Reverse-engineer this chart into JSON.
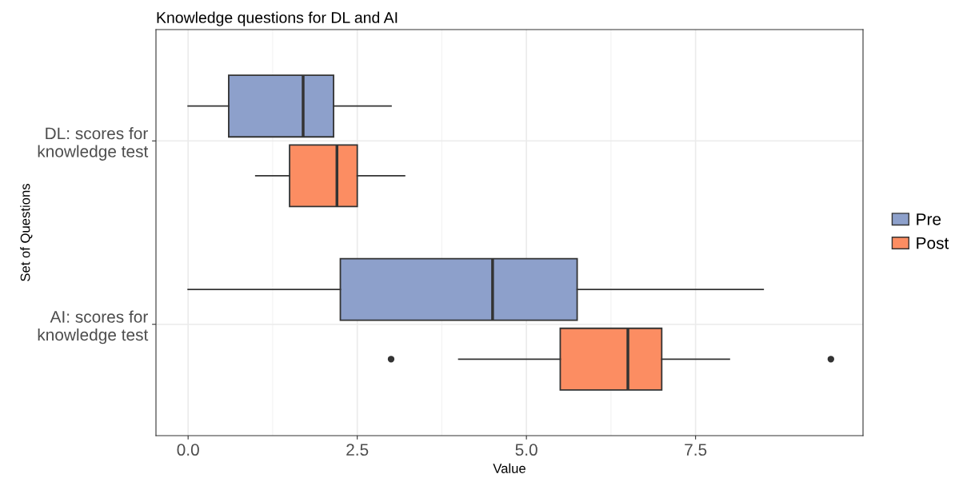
{
  "chart_data": {
    "type": "box",
    "title": "Knowledge questions for DL and AI",
    "xlabel": "Value",
    "ylabel": "Set of Questions",
    "orientation": "horizontal",
    "categories": [
      "DL: scores for\nknowledge test",
      "AI: scores for\nknowledge test"
    ],
    "series": [
      {
        "name": "Pre",
        "color": "#8da0cb",
        "boxes": [
          {
            "low": 0,
            "q1": 0.6,
            "median": 1.7,
            "q3": 2.15,
            "high": 3.0
          },
          {
            "low": 0,
            "q1": 2.25,
            "median": 4.5,
            "q3": 5.75,
            "high": 8.5
          }
        ]
      },
      {
        "name": "Post",
        "color": "#fc8d62",
        "boxes": [
          {
            "low": 1.0,
            "q1": 1.5,
            "median": 2.2,
            "q3": 2.5,
            "high": 3.2
          },
          {
            "low": 4.0,
            "q1": 5.5,
            "median": 6.5,
            "q3": 7.0,
            "high": 8.0,
            "outliers": [
              3.0,
              9.5
            ]
          }
        ]
      }
    ],
    "xlim": [
      -0.475,
      9.975
    ],
    "xticks": [
      {
        "value": 0,
        "label": "0.0"
      },
      2.5,
      {
        "value": 5,
        "label": "5.0"
      },
      7.5
    ],
    "grid": true,
    "legend": "right"
  }
}
